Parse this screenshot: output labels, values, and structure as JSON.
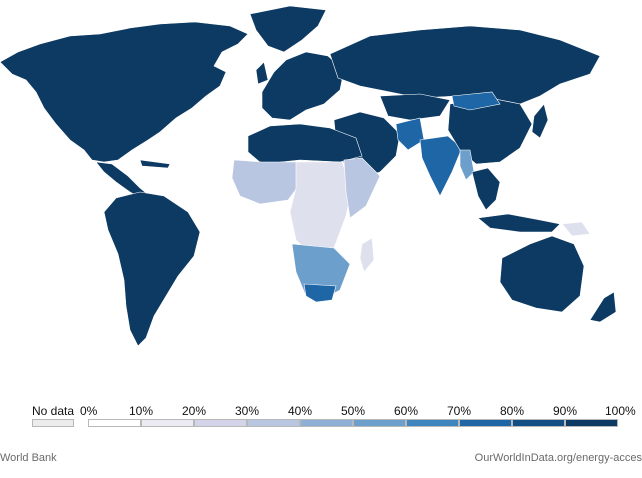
{
  "legend": {
    "no_data_label": "No data",
    "no_data_color": "#ececec",
    "bins": [
      {
        "label": "0%",
        "color": "#ffffff"
      },
      {
        "label": "10%",
        "color": "#ecebf4"
      },
      {
        "label": "20%",
        "color": "#d3d4e9"
      },
      {
        "label": "30%",
        "color": "#b8c6e2"
      },
      {
        "label": "40%",
        "color": "#8fb0d6"
      },
      {
        "label": "50%",
        "color": "#6c9fcc"
      },
      {
        "label": "60%",
        "color": "#3f86bf"
      },
      {
        "label": "70%",
        "color": "#1f66a7"
      },
      {
        "label": "80%",
        "color": "#124f85"
      },
      {
        "label": "90%",
        "color": "#0c3a62"
      }
    ],
    "end_label": "100%"
  },
  "footer": {
    "source": "World Bank",
    "url": "OurWorldInData.org/energy-acces"
  },
  "colors": {
    "high": "#0c3a62",
    "mid_high": "#1f66a7",
    "mid": "#6c9fcc",
    "low_mid": "#b8c6e2",
    "low": "#dfe0ee",
    "border": "#ffffff"
  }
}
